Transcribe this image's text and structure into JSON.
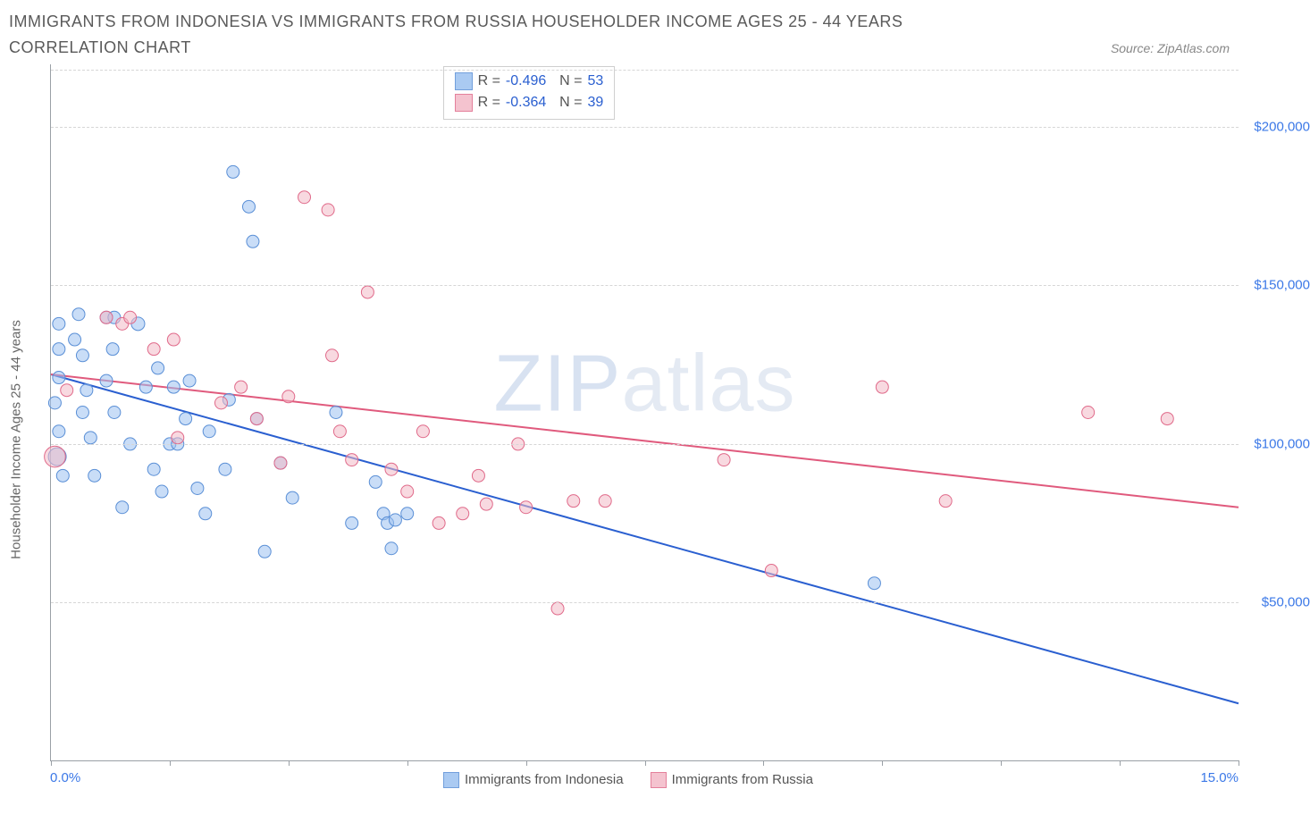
{
  "title": "IMMIGRANTS FROM INDONESIA VS IMMIGRANTS FROM RUSSIA HOUSEHOLDER INCOME AGES 25 - 44 YEARS CORRELATION CHART",
  "source": "Source: ZipAtlas.com",
  "watermark_bold": "ZIP",
  "watermark_thin": "atlas",
  "ylabel": "Householder Income Ages 25 - 44 years",
  "chart": {
    "type": "scatter",
    "background_color": "#ffffff",
    "grid_color": "#d6d6d6",
    "axis_color": "#9aa0a6",
    "xlim": [
      0,
      15
    ],
    "ylim": [
      0,
      220000
    ],
    "x_tick_positions": [
      0,
      1.5,
      3.0,
      4.5,
      6.0,
      7.5,
      9.0,
      10.5,
      12.0,
      13.5,
      15.0
    ],
    "x_min_label": "0.0%",
    "x_max_label": "15.0%",
    "y_ticks": [
      {
        "v": 50000,
        "label": "$50,000"
      },
      {
        "v": 100000,
        "label": "$100,000"
      },
      {
        "v": 150000,
        "label": "$150,000"
      },
      {
        "v": 200000,
        "label": "$200,000"
      }
    ],
    "series": [
      {
        "name": "Immigrants from Indonesia",
        "fill": "#9cc1f0",
        "stroke": "#5a8fd6",
        "fill_opacity": 0.55,
        "line_color": "#2a5fd0",
        "line_width": 2,
        "marker_r_min": 7,
        "marker_r_max": 12,
        "R": "-0.496",
        "N": "53",
        "trend": {
          "x1": 0,
          "y1": 122000,
          "x2": 15,
          "y2": 18000
        },
        "points": [
          {
            "x": 0.1,
            "y": 138000,
            "s": 1.0
          },
          {
            "x": 0.1,
            "y": 130000,
            "s": 1.0
          },
          {
            "x": 0.1,
            "y": 121000,
            "s": 1.0
          },
          {
            "x": 0.05,
            "y": 113000,
            "s": 1.0
          },
          {
            "x": 0.1,
            "y": 104000,
            "s": 1.0
          },
          {
            "x": 0.08,
            "y": 96000,
            "s": 1.6
          },
          {
            "x": 0.15,
            "y": 90000,
            "s": 1.0
          },
          {
            "x": 0.3,
            "y": 133000,
            "s": 1.0
          },
          {
            "x": 0.35,
            "y": 141000,
            "s": 1.0
          },
          {
            "x": 0.4,
            "y": 128000,
            "s": 1.0
          },
          {
            "x": 0.4,
            "y": 110000,
            "s": 1.0
          },
          {
            "x": 0.45,
            "y": 117000,
            "s": 1.0
          },
          {
            "x": 0.5,
            "y": 102000,
            "s": 1.0
          },
          {
            "x": 0.55,
            "y": 90000,
            "s": 1.0
          },
          {
            "x": 0.7,
            "y": 140000,
            "s": 1.0
          },
          {
            "x": 0.7,
            "y": 120000,
            "s": 1.0
          },
          {
            "x": 0.78,
            "y": 130000,
            "s": 1.0
          },
          {
            "x": 0.8,
            "y": 110000,
            "s": 1.0
          },
          {
            "x": 0.8,
            "y": 140000,
            "s": 1.0
          },
          {
            "x": 0.9,
            "y": 80000,
            "s": 1.0
          },
          {
            "x": 1.0,
            "y": 100000,
            "s": 1.0
          },
          {
            "x": 1.1,
            "y": 138000,
            "s": 1.1
          },
          {
            "x": 1.2,
            "y": 118000,
            "s": 1.0
          },
          {
            "x": 1.3,
            "y": 92000,
            "s": 1.0
          },
          {
            "x": 1.35,
            "y": 124000,
            "s": 1.0
          },
          {
            "x": 1.4,
            "y": 85000,
            "s": 1.0
          },
          {
            "x": 1.5,
            "y": 100000,
            "s": 1.0
          },
          {
            "x": 1.55,
            "y": 118000,
            "s": 1.0
          },
          {
            "x": 1.6,
            "y": 100000,
            "s": 1.0
          },
          {
            "x": 1.7,
            "y": 108000,
            "s": 1.0
          },
          {
            "x": 1.75,
            "y": 120000,
            "s": 1.0
          },
          {
            "x": 1.85,
            "y": 86000,
            "s": 1.0
          },
          {
            "x": 1.95,
            "y": 78000,
            "s": 1.0
          },
          {
            "x": 2.0,
            "y": 104000,
            "s": 1.0
          },
          {
            "x": 2.2,
            "y": 92000,
            "s": 1.0
          },
          {
            "x": 2.25,
            "y": 114000,
            "s": 1.0
          },
          {
            "x": 2.3,
            "y": 186000,
            "s": 1.0
          },
          {
            "x": 2.5,
            "y": 175000,
            "s": 1.0
          },
          {
            "x": 2.55,
            "y": 164000,
            "s": 1.0
          },
          {
            "x": 2.6,
            "y": 108000,
            "s": 1.0
          },
          {
            "x": 2.7,
            "y": 66000,
            "s": 1.0
          },
          {
            "x": 2.9,
            "y": 94000,
            "s": 1.0
          },
          {
            "x": 3.05,
            "y": 83000,
            "s": 1.0
          },
          {
            "x": 3.6,
            "y": 110000,
            "s": 1.0
          },
          {
            "x": 3.8,
            "y": 75000,
            "s": 1.0
          },
          {
            "x": 4.1,
            "y": 88000,
            "s": 1.0
          },
          {
            "x": 4.2,
            "y": 78000,
            "s": 1.0
          },
          {
            "x": 4.25,
            "y": 75000,
            "s": 1.0
          },
          {
            "x": 4.3,
            "y": 67000,
            "s": 1.0
          },
          {
            "x": 4.35,
            "y": 76000,
            "s": 1.0
          },
          {
            "x": 4.5,
            "y": 78000,
            "s": 1.0
          },
          {
            "x": 10.4,
            "y": 56000,
            "s": 1.0
          }
        ]
      },
      {
        "name": "Immigrants from Russia",
        "fill": "#f3b9c7",
        "stroke": "#e06a8a",
        "fill_opacity": 0.55,
        "line_color": "#e05a7d",
        "line_width": 2,
        "marker_r_min": 7,
        "marker_r_max": 13,
        "R": "-0.364",
        "N": "39",
        "trend": {
          "x1": 0,
          "y1": 122000,
          "x2": 15,
          "y2": 80000
        },
        "points": [
          {
            "x": 0.05,
            "y": 96000,
            "s": 1.8
          },
          {
            "x": 0.2,
            "y": 117000,
            "s": 1.0
          },
          {
            "x": 0.7,
            "y": 140000,
            "s": 1.0
          },
          {
            "x": 0.9,
            "y": 138000,
            "s": 1.0
          },
          {
            "x": 1.0,
            "y": 140000,
            "s": 1.0
          },
          {
            "x": 1.3,
            "y": 130000,
            "s": 1.0
          },
          {
            "x": 1.55,
            "y": 133000,
            "s": 1.0
          },
          {
            "x": 1.6,
            "y": 102000,
            "s": 1.0
          },
          {
            "x": 2.15,
            "y": 113000,
            "s": 1.0
          },
          {
            "x": 2.4,
            "y": 118000,
            "s": 1.0
          },
          {
            "x": 2.6,
            "y": 108000,
            "s": 1.0
          },
          {
            "x": 2.9,
            "y": 94000,
            "s": 1.0
          },
          {
            "x": 3.0,
            "y": 115000,
            "s": 1.0
          },
          {
            "x": 3.2,
            "y": 178000,
            "s": 1.0
          },
          {
            "x": 3.5,
            "y": 174000,
            "s": 1.0
          },
          {
            "x": 3.55,
            "y": 128000,
            "s": 1.0
          },
          {
            "x": 3.65,
            "y": 104000,
            "s": 1.0
          },
          {
            "x": 3.8,
            "y": 95000,
            "s": 1.0
          },
          {
            "x": 4.0,
            "y": 148000,
            "s": 1.0
          },
          {
            "x": 4.3,
            "y": 92000,
            "s": 1.0
          },
          {
            "x": 4.5,
            "y": 85000,
            "s": 1.0
          },
          {
            "x": 4.7,
            "y": 104000,
            "s": 1.0
          },
          {
            "x": 4.9,
            "y": 75000,
            "s": 1.0
          },
          {
            "x": 5.2,
            "y": 78000,
            "s": 1.0
          },
          {
            "x": 5.4,
            "y": 90000,
            "s": 1.0
          },
          {
            "x": 5.5,
            "y": 81000,
            "s": 1.0
          },
          {
            "x": 5.9,
            "y": 100000,
            "s": 1.0
          },
          {
            "x": 6.0,
            "y": 80000,
            "s": 1.0
          },
          {
            "x": 6.6,
            "y": 82000,
            "s": 1.0
          },
          {
            "x": 6.4,
            "y": 48000,
            "s": 1.0
          },
          {
            "x": 7.0,
            "y": 82000,
            "s": 1.0
          },
          {
            "x": 8.5,
            "y": 95000,
            "s": 1.0
          },
          {
            "x": 9.1,
            "y": 60000,
            "s": 1.0
          },
          {
            "x": 10.5,
            "y": 118000,
            "s": 1.0
          },
          {
            "x": 11.3,
            "y": 82000,
            "s": 1.0
          },
          {
            "x": 13.1,
            "y": 110000,
            "s": 1.0
          },
          {
            "x": 14.1,
            "y": 108000,
            "s": 1.0
          }
        ]
      }
    ]
  },
  "bottom_legend": [
    {
      "label": "Immigrants from Indonesia",
      "fill": "#9cc1f0",
      "stroke": "#5a8fd6"
    },
    {
      "label": "Immigrants from Russia",
      "fill": "#f3b9c7",
      "stroke": "#e06a8a"
    }
  ]
}
